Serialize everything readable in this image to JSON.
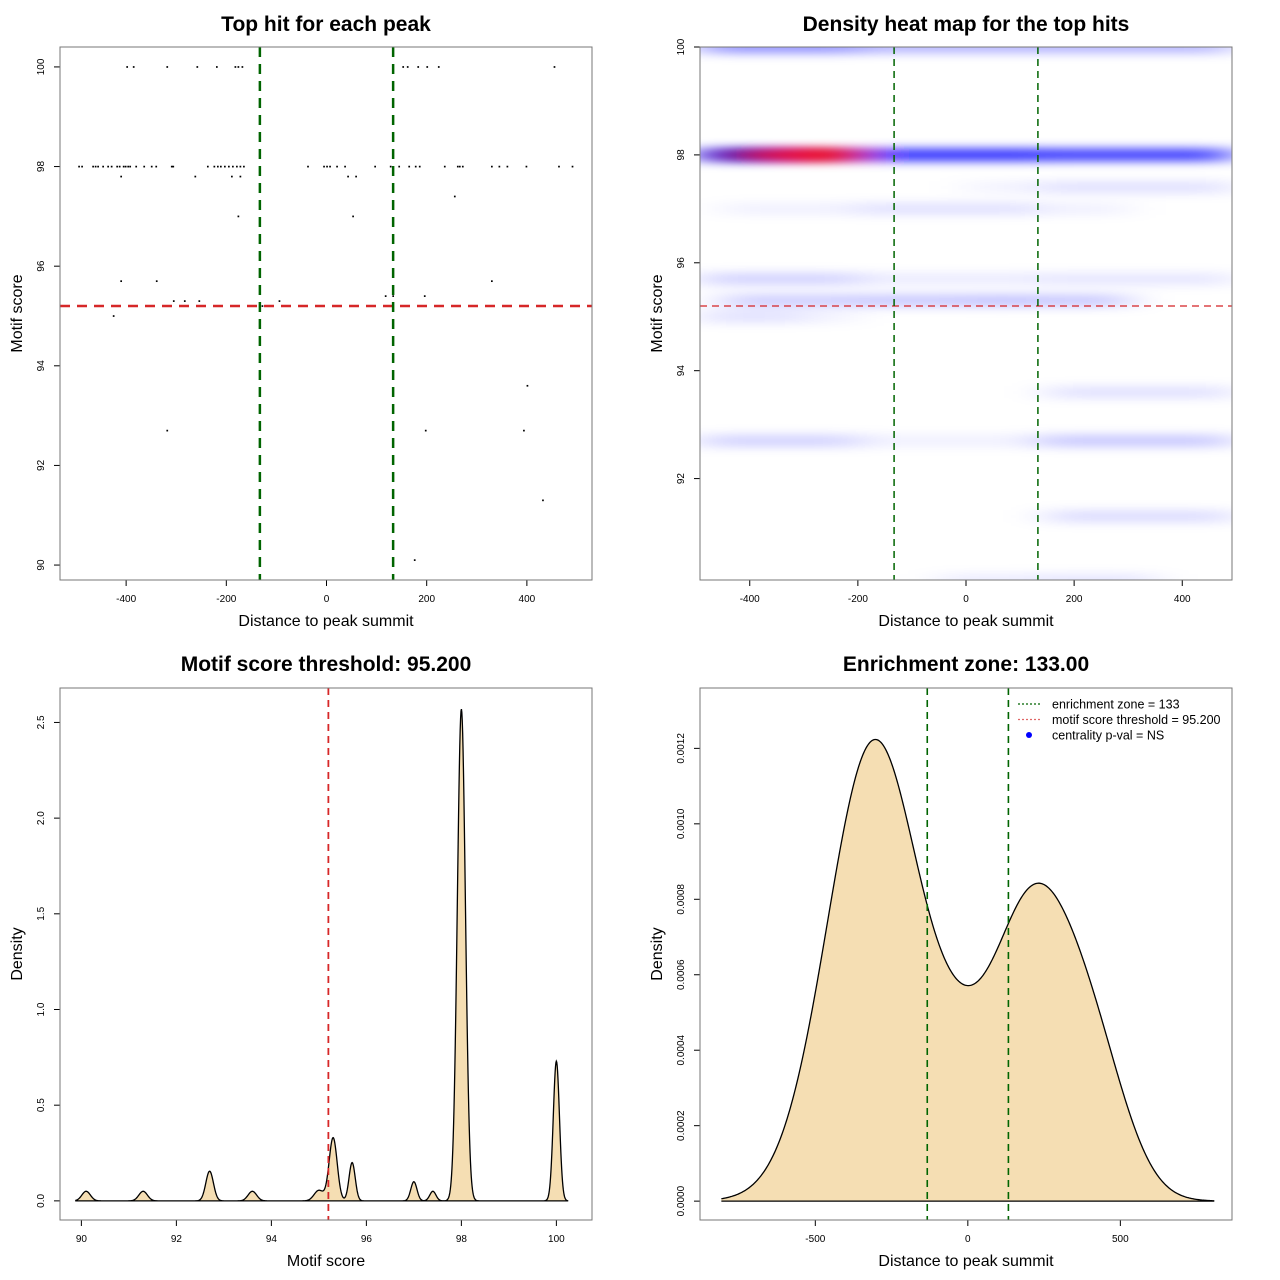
{
  "chart_data": [
    {
      "id": "scatter",
      "type": "scatter",
      "title": "Top hit for each peak",
      "xlabel": "Distance to peak summit",
      "ylabel": "Motif score",
      "xlim": [
        -532,
        530
      ],
      "ylim": [
        89.7,
        100.4
      ],
      "xticks": [
        -400,
        -200,
        0,
        200,
        400
      ],
      "xtick_labels": [
        "-400",
        "-200",
        "0",
        "200",
        "400"
      ],
      "yticks": [
        90,
        92,
        94,
        96,
        98,
        100
      ],
      "ytick_labels": [
        "90",
        "92",
        "94",
        "96",
        "98",
        "100"
      ],
      "vlines": [
        -133,
        133
      ],
      "hline": 95.2,
      "points": [
        [
          -398,
          100
        ],
        [
          -385,
          100
        ],
        [
          -318,
          100
        ],
        [
          -258,
          100
        ],
        [
          -219,
          100
        ],
        [
          -182,
          100
        ],
        [
          -176,
          100
        ],
        [
          -168,
          100
        ],
        [
          153,
          100
        ],
        [
          162,
          100
        ],
        [
          183,
          100
        ],
        [
          201,
          100
        ],
        [
          224,
          100
        ],
        [
          455,
          100
        ],
        [
          -494,
          98
        ],
        [
          -488,
          98
        ],
        [
          -466,
          98
        ],
        [
          -461,
          98
        ],
        [
          -456,
          98
        ],
        [
          -446,
          98
        ],
        [
          -436,
          98
        ],
        [
          -429,
          98
        ],
        [
          -418,
          98
        ],
        [
          -413,
          98
        ],
        [
          -405,
          98
        ],
        [
          -401,
          98
        ],
        [
          -396,
          98
        ],
        [
          -392,
          98
        ],
        [
          -380,
          98
        ],
        [
          -364,
          98
        ],
        [
          -349,
          98
        ],
        [
          -340,
          98
        ],
        [
          -309,
          98
        ],
        [
          -306,
          98
        ],
        [
          -237,
          98
        ],
        [
          -224,
          98
        ],
        [
          -217,
          98
        ],
        [
          -211,
          98
        ],
        [
          -203,
          98
        ],
        [
          -195,
          98
        ],
        [
          -187,
          98
        ],
        [
          -179,
          98
        ],
        [
          -172,
          98
        ],
        [
          -165,
          98
        ],
        [
          -37,
          98
        ],
        [
          -5,
          98
        ],
        [
          1,
          98
        ],
        [
          7,
          98
        ],
        [
          21,
          98
        ],
        [
          37,
          98
        ],
        [
          97,
          98
        ],
        [
          128,
          98
        ],
        [
          145,
          98
        ],
        [
          165,
          98
        ],
        [
          178,
          98
        ],
        [
          186,
          98
        ],
        [
          236,
          98
        ],
        [
          262,
          98
        ],
        [
          266,
          98
        ],
        [
          272,
          98
        ],
        [
          330,
          98
        ],
        [
          345,
          98
        ],
        [
          361,
          98
        ],
        [
          399,
          98
        ],
        [
          464,
          98
        ],
        [
          491,
          98
        ],
        [
          -410,
          97.8
        ],
        [
          -262,
          97.8
        ],
        [
          -189,
          97.8
        ],
        [
          -172,
          97.8
        ],
        [
          43,
          97.8
        ],
        [
          59,
          97.8
        ],
        [
          256,
          97.4
        ],
        [
          -176,
          97
        ],
        [
          53,
          97
        ],
        [
          -410,
          95.7
        ],
        [
          -339,
          95.7
        ],
        [
          330,
          95.7
        ],
        [
          -305,
          95.3
        ],
        [
          -283,
          95.3
        ],
        [
          -254,
          95.3
        ],
        [
          -128,
          95.2
        ],
        [
          -114,
          95.2
        ],
        [
          -94,
          95.3
        ],
        [
          118,
          95.4
        ],
        [
          133,
          95.4
        ],
        [
          196,
          95.4
        ],
        [
          -425,
          95
        ],
        [
          401,
          93.6
        ],
        [
          -318,
          92.7
        ],
        [
          198,
          92.7
        ],
        [
          394,
          92.7
        ],
        [
          432,
          91.3
        ],
        [
          176,
          90.1
        ]
      ]
    },
    {
      "id": "heatmap",
      "type": "heatmap",
      "title": "Density heat map for the top hits",
      "xlabel": "Distance to peak summit",
      "ylabel": "Motif score",
      "xlim": [
        -492,
        492
      ],
      "ylim": [
        90.12,
        100
      ],
      "xticks": [
        -400,
        -200,
        0,
        200,
        400
      ],
      "xtick_labels": [
        "-400",
        "-200",
        "0",
        "200",
        "400"
      ],
      "yticks": [
        92,
        94,
        96,
        98,
        100
      ],
      "ytick_labels": [
        "92",
        "94",
        "96",
        "98",
        "100"
      ],
      "vlines": [
        -133,
        133
      ],
      "hline": 95.2,
      "color_low": "#ffffff",
      "color_mid": "#0000ff",
      "color_high": "#ff0000",
      "bands": [
        {
          "y": 100,
          "segments": [
            [
              -492,
              -200,
              0.45
            ],
            [
              -200,
              133,
              0.3
            ],
            [
              133,
              492,
              0.3
            ]
          ]
        },
        {
          "y": 98,
          "segments": [
            [
              -492,
              -330,
              1.0
            ],
            [
              -330,
              -200,
              1.2
            ],
            [
              -200,
              133,
              0.85
            ],
            [
              133,
              492,
              0.8
            ]
          ]
        },
        {
          "y": 97.4,
          "segments": [
            [
              0,
              133,
              0.05
            ],
            [
              133,
              492,
              0.12
            ]
          ]
        },
        {
          "y": 97,
          "segments": [
            [
              -450,
              -200,
              0.06
            ],
            [
              -200,
              133,
              0.12
            ],
            [
              133,
              300,
              0.06
            ]
          ]
        },
        {
          "y": 95.7,
          "segments": [
            [
              -492,
              -200,
              0.18
            ],
            [
              -200,
              133,
              0.08
            ],
            [
              133,
              492,
              0.1
            ]
          ]
        },
        {
          "y": 95.3,
          "segments": [
            [
              -450,
              -200,
              0.2
            ],
            [
              -200,
              0,
              0.22
            ],
            [
              0,
              133,
              0.24
            ],
            [
              133,
              300,
              0.22
            ]
          ]
        },
        {
          "y": 95.0,
          "segments": [
            [
              -492,
              -300,
              0.12
            ],
            [
              -300,
              -200,
              0.05
            ]
          ]
        },
        {
          "y": 93.6,
          "segments": [
            [
              150,
              492,
              0.12
            ]
          ]
        },
        {
          "y": 92.7,
          "segments": [
            [
              -492,
              -200,
              0.18
            ],
            [
              -200,
              133,
              0.06
            ],
            [
              133,
              492,
              0.22
            ]
          ]
        },
        {
          "y": 91.3,
          "segments": [
            [
              150,
              492,
              0.14
            ]
          ]
        },
        {
          "y": 90.12,
          "segments": [
            [
              -50,
              133,
              0.08
            ],
            [
              133,
              350,
              0.1
            ]
          ]
        }
      ]
    },
    {
      "id": "score-density",
      "type": "area",
      "title": "Motif score threshold: 95.200",
      "xlabel": "Motif score",
      "ylabel": "Density",
      "xlim": [
        89.55,
        100.75
      ],
      "ylim": [
        -0.1,
        2.68
      ],
      "xticks": [
        90,
        92,
        94,
        96,
        98,
        100
      ],
      "xtick_labels": [
        "90",
        "92",
        "94",
        "96",
        "98",
        "100"
      ],
      "yticks": [
        0,
        0.5,
        1.0,
        1.5,
        2.0,
        2.5
      ],
      "ytick_labels": [
        "0.0",
        "0.5",
        "1.0",
        "1.5",
        "2.0",
        "2.5"
      ],
      "vline": 95.2,
      "x_range": [
        89.87,
        100.25
      ],
      "peaks": [
        {
          "mu": 90.1,
          "h": 0.05,
          "sd": 0.09
        },
        {
          "mu": 91.3,
          "h": 0.05,
          "sd": 0.09
        },
        {
          "mu": 92.7,
          "h": 0.155,
          "sd": 0.08
        },
        {
          "mu": 93.6,
          "h": 0.05,
          "sd": 0.09
        },
        {
          "mu": 95.0,
          "h": 0.055,
          "sd": 0.1
        },
        {
          "mu": 95.3,
          "h": 0.33,
          "sd": 0.085
        },
        {
          "mu": 95.7,
          "h": 0.2,
          "sd": 0.065
        },
        {
          "mu": 97.0,
          "h": 0.1,
          "sd": 0.065
        },
        {
          "mu": 97.4,
          "h": 0.05,
          "sd": 0.065
        },
        {
          "mu": 98.0,
          "h": 2.57,
          "sd": 0.085
        },
        {
          "mu": 100.0,
          "h": 0.73,
          "sd": 0.065
        }
      ],
      "fill": "#f5deb3"
    },
    {
      "id": "distance-density",
      "type": "area",
      "title": "Enrichment zone: 133.00",
      "xlabel": "Distance to peak summit",
      "ylabel": "Density",
      "xlim": [
        -878,
        866
      ],
      "ylim": [
        -5e-05,
        0.00136
      ],
      "xticks": [
        -500,
        0,
        500
      ],
      "xtick_labels": [
        "-500",
        "0",
        "500"
      ],
      "yticks": [
        0,
        0.0002,
        0.0004,
        0.0006,
        0.0008,
        0.001,
        0.0012
      ],
      "ytick_labels": [
        "0.0000",
        "0.0002",
        "0.0004",
        "0.0006",
        "0.0008",
        "0.0010",
        "0.0012"
      ],
      "vlines": [
        -133,
        133
      ],
      "x_range": [
        -808,
        808
      ],
      "components": [
        {
          "mu": -305,
          "w": 0.00122,
          "sd": 155
        },
        {
          "mu": 215,
          "w": 0.0008,
          "sd": 150
        },
        {
          "mu": 430,
          "w": 0.00022,
          "sd": 110
        },
        {
          "mu": -40,
          "w": 0.00012,
          "sd": 90
        }
      ],
      "fill": "#f5deb3",
      "legend": {
        "position": "top-right",
        "items": [
          {
            "label": "enrichment zone = 133",
            "color": "#006400",
            "kind": "dotted-line"
          },
          {
            "label": "motif score threshold = 95.200",
            "color": "#e06666",
            "kind": "dotted-line"
          },
          {
            "label": "centrality p-val = NS",
            "color": "#0000ff",
            "kind": "point"
          }
        ]
      }
    }
  ],
  "colors": {
    "enrichment_line": "#006400",
    "threshold_line": "#d62728",
    "fill": "#f5deb3",
    "axis": "#000000",
    "box": "#888888"
  }
}
